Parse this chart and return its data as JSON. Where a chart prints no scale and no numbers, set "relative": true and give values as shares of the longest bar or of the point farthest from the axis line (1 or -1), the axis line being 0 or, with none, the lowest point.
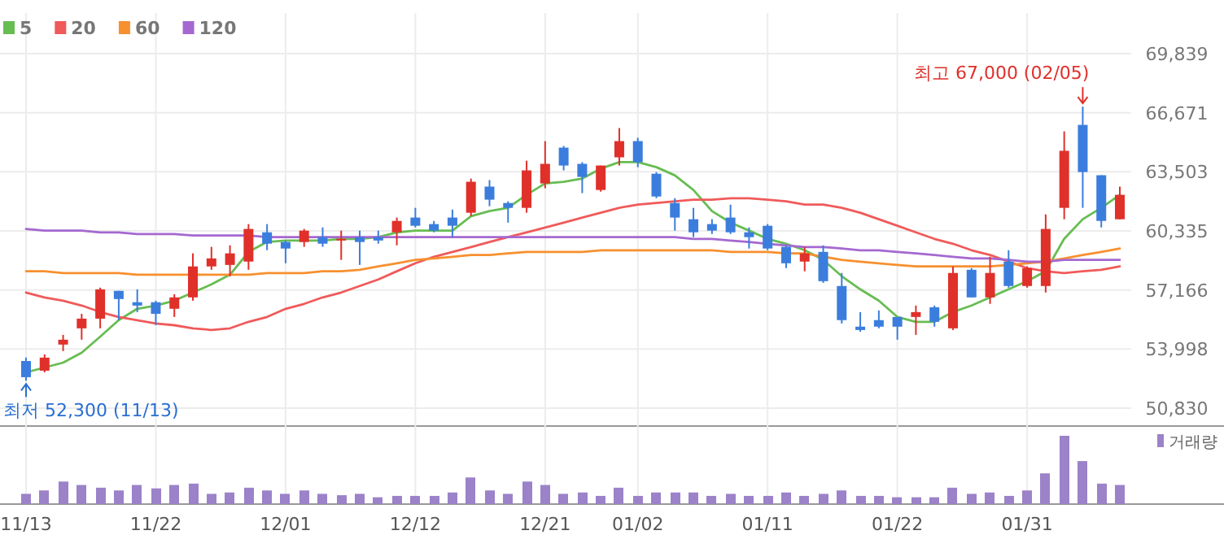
{
  "chart_data": [
    {
      "type": "candlestick",
      "categories": [
        null,
        null,
        null,
        null,
        null,
        null,
        null,
        null,
        null,
        null,
        null,
        null,
        null,
        null,
        null,
        null,
        null,
        null,
        null,
        null,
        null,
        null,
        null,
        null,
        null,
        null,
        null,
        null,
        null,
        null,
        null,
        null,
        null,
        null,
        null,
        null,
        null,
        null,
        null,
        null,
        null,
        null,
        null,
        null,
        null,
        null,
        null,
        null,
        null,
        null,
        null,
        null,
        null,
        null,
        null,
        null,
        null,
        null,
        null,
        null
      ],
      "ohlc": [
        [
          53360,
          53540,
          52300,
          52490
        ],
        [
          52840,
          53710,
          52750,
          53540
        ],
        [
          54240,
          54760,
          53890,
          54500
        ],
        [
          55110,
          55890,
          54500,
          55630
        ],
        [
          55630,
          57290,
          55110,
          57200
        ],
        [
          57120,
          57120,
          55550,
          56680
        ],
        [
          56510,
          57200,
          55980,
          56330
        ],
        [
          56510,
          56590,
          55280,
          55890
        ],
        [
          56160,
          56940,
          55720,
          56770
        ],
        [
          56770,
          59130,
          56590,
          58430
        ],
        [
          58430,
          59480,
          58250,
          58860
        ],
        [
          58510,
          59560,
          57900,
          59130
        ],
        [
          58690,
          60700,
          58250,
          60440
        ],
        [
          60260,
          60700,
          59300,
          59650
        ],
        [
          59740,
          59820,
          58600,
          59390
        ],
        [
          59740,
          60440,
          59480,
          60350
        ],
        [
          60000,
          60520,
          59480,
          59650
        ],
        [
          59820,
          60350,
          58780,
          59910
        ],
        [
          60000,
          60350,
          58510,
          59740
        ],
        [
          60000,
          60350,
          59650,
          59820
        ],
        [
          60260,
          61050,
          59560,
          60870
        ],
        [
          61050,
          61570,
          60520,
          60610
        ],
        [
          60700,
          60870,
          60260,
          60350
        ],
        [
          61050,
          61480,
          60000,
          60610
        ],
        [
          61310,
          63140,
          61130,
          62970
        ],
        [
          62710,
          63060,
          61660,
          62010
        ],
        [
          61830,
          61920,
          60780,
          61570
        ],
        [
          61570,
          64100,
          61310,
          63580
        ],
        [
          62880,
          65150,
          62620,
          63930
        ],
        [
          64800,
          64890,
          63580,
          63840
        ],
        [
          63930,
          64020,
          62360,
          63230
        ],
        [
          62530,
          63840,
          62440,
          63840
        ],
        [
          64280,
          65850,
          63840,
          65150
        ],
        [
          65150,
          65330,
          63750,
          64020
        ],
        [
          63400,
          63490,
          62090,
          62180
        ],
        [
          61830,
          62090,
          60350,
          61050
        ],
        [
          60960,
          61570,
          60000,
          60260
        ],
        [
          60700,
          60960,
          60170,
          60350
        ],
        [
          61050,
          61740,
          60170,
          60260
        ],
        [
          60260,
          60520,
          59390,
          60000
        ],
        [
          60610,
          60700,
          59300,
          59390
        ],
        [
          59480,
          59560,
          58340,
          58600
        ],
        [
          58690,
          59480,
          58170,
          59130
        ],
        [
          59210,
          59560,
          57550,
          57640
        ],
        [
          57380,
          58080,
          55370,
          55550
        ],
        [
          55200,
          55980,
          54930,
          55020
        ],
        [
          55550,
          56070,
          55110,
          55200
        ],
        [
          55720,
          55720,
          54500,
          55200
        ],
        [
          55720,
          56330,
          54760,
          55980
        ],
        [
          56240,
          56330,
          55200,
          55460
        ],
        [
          55110,
          58430,
          55020,
          58080
        ],
        [
          58250,
          58340,
          56770,
          56770
        ],
        [
          56770,
          58950,
          56420,
          58080
        ],
        [
          58690,
          59300,
          57290,
          57380
        ],
        [
          57380,
          58430,
          57290,
          58340
        ],
        [
          57380,
          61220,
          57030,
          60440
        ],
        [
          61570,
          65670,
          60960,
          64630
        ],
        [
          66020,
          67000,
          61570,
          63490
        ],
        [
          63320,
          63320,
          60520,
          60870
        ],
        [
          60960,
          62710,
          60960,
          62270
        ]
      ],
      "colors": [
        "#3b7ddd",
        "#e0302a",
        "#e0302a",
        "#e0302a",
        "#e0302a",
        "#3b7ddd",
        "#3b7ddd",
        "#3b7ddd",
        "#e0302a",
        "#e0302a",
        "#e0302a",
        "#e0302a",
        "#e0302a",
        "#3b7ddd",
        "#3b7ddd",
        "#e0302a",
        "#3b7ddd",
        "#e0302a",
        "#3b7ddd",
        "#3b7ddd",
        "#e0302a",
        "#3b7ddd",
        "#3b7ddd",
        "#3b7ddd",
        "#e0302a",
        "#3b7ddd",
        "#3b7ddd",
        "#e0302a",
        "#e0302a",
        "#3b7ddd",
        "#3b7ddd",
        "#e0302a",
        "#e0302a",
        "#3b7ddd",
        "#3b7ddd",
        "#3b7ddd",
        "#3b7ddd",
        "#3b7ddd",
        "#3b7ddd",
        "#3b7ddd",
        "#3b7ddd",
        "#3b7ddd",
        "#e0302a",
        "#3b7ddd",
        "#3b7ddd",
        "#3b7ddd",
        "#3b7ddd",
        "#3b7ddd",
        "#e0302a",
        "#3b7ddd",
        "#e0302a",
        "#3b7ddd",
        "#e0302a",
        "#3b7ddd",
        "#e0302a",
        "#e0302a",
        "#e0302a",
        "#3b7ddd",
        "#3b7ddd",
        "#e0302a"
      ],
      "series": [
        {
          "name": "5",
          "type": "line",
          "color": "#67bd52",
          "values": [
            52750,
            53010,
            53270,
            53800,
            54670,
            55550,
            56160,
            56330,
            56590,
            57030,
            57470,
            57990,
            59210,
            59740,
            59820,
            59820,
            59820,
            59910,
            59910,
            60000,
            60260,
            60350,
            60350,
            60350,
            61130,
            61400,
            61570,
            62270,
            62880,
            62970,
            63140,
            63670,
            64020,
            64020,
            63750,
            63320,
            62530,
            61400,
            60780,
            60350,
            59910,
            59650,
            59300,
            58780,
            57900,
            57200,
            56590,
            55720,
            55460,
            55460,
            55980,
            56330,
            56770,
            57200,
            57640,
            58170,
            59910,
            60960,
            61570,
            62270
          ]
        },
        {
          "name": "20",
          "type": "line",
          "color": "#f05a5a",
          "values": [
            57030,
            56770,
            56590,
            56330,
            55980,
            55720,
            55550,
            55370,
            55280,
            55110,
            55020,
            55110,
            55460,
            55720,
            56160,
            56420,
            56770,
            57030,
            57380,
            57730,
            58170,
            58600,
            58950,
            59210,
            59470,
            59740,
            60000,
            60260,
            60520,
            60780,
            61050,
            61310,
            61570,
            61750,
            61830,
            61920,
            62010,
            62010,
            62090,
            62090,
            62010,
            61920,
            61750,
            61750,
            61570,
            61310,
            60960,
            60610,
            60260,
            59910,
            59650,
            59300,
            59040,
            58690,
            58340,
            58170,
            58080,
            58170,
            58250,
            58430
          ]
        },
        {
          "name": "60",
          "type": "line",
          "color": "#f7902f",
          "values": [
            58170,
            58170,
            58080,
            58080,
            58080,
            58080,
            57990,
            57990,
            57990,
            57990,
            57990,
            57990,
            57990,
            58080,
            58080,
            58080,
            58170,
            58170,
            58250,
            58430,
            58600,
            58780,
            58860,
            58950,
            59040,
            59040,
            59130,
            59210,
            59210,
            59210,
            59210,
            59300,
            59300,
            59300,
            59300,
            59300,
            59300,
            59300,
            59210,
            59210,
            59210,
            59130,
            59130,
            58950,
            58780,
            58690,
            58600,
            58510,
            58430,
            58430,
            58430,
            58430,
            58430,
            58510,
            58600,
            58690,
            58860,
            59040,
            59210,
            59390
          ]
        },
        {
          "name": "120",
          "type": "line",
          "color": "#a568d0",
          "values": [
            60440,
            60350,
            60350,
            60350,
            60260,
            60260,
            60170,
            60170,
            60170,
            60090,
            60090,
            60090,
            60090,
            60000,
            60000,
            60000,
            60000,
            60000,
            60000,
            60000,
            60000,
            60000,
            60000,
            60000,
            60000,
            60000,
            60000,
            60000,
            60000,
            60000,
            60000,
            60000,
            60000,
            60000,
            60000,
            60000,
            59910,
            59910,
            59820,
            59740,
            59650,
            59560,
            59470,
            59470,
            59390,
            59300,
            59300,
            59210,
            59130,
            59040,
            58950,
            58860,
            58860,
            58780,
            58690,
            58690,
            58780,
            58780,
            58780,
            58780
          ]
        }
      ],
      "ylim": [
        50830,
        69839
      ],
      "yticks": [
        {
          "value": 50830,
          "label": "50,830"
        },
        {
          "value": 53998,
          "label": "53,998"
        },
        {
          "value": 57166,
          "label": "57,166"
        },
        {
          "value": 60335,
          "label": "60,335"
        },
        {
          "value": 63503,
          "label": "63,503"
        },
        {
          "value": 66671,
          "label": "66,671"
        },
        {
          "value": 69839,
          "label": "69,839"
        }
      ],
      "grid": "y",
      "legend": "top left",
      "tick_labels": "y",
      "annotations": [
        "최고 67,000 (02/05)",
        "최저 52,300 (11/13)"
      ]
    },
    {
      "type": "bar",
      "categories": [
        "11/13",
        null,
        null,
        null,
        null,
        null,
        null,
        "11/22",
        null,
        null,
        null,
        null,
        null,
        null,
        "12/01",
        null,
        null,
        null,
        null,
        null,
        null,
        "12/12",
        null,
        null,
        null,
        null,
        null,
        null,
        "12/21",
        null,
        null,
        null,
        null,
        "01/02",
        null,
        null,
        null,
        null,
        null,
        null,
        "01/11",
        null,
        null,
        null,
        null,
        null,
        null,
        "01/22",
        null,
        null,
        null,
        null,
        null,
        null,
        "01/31",
        null,
        null,
        null,
        null,
        null
      ],
      "relative": true,
      "grid": "x",
      "legend": "top right",
      "series": [
        {
          "name": "거래량",
          "color": "#9b82c9",
          "values": [
            0.15,
            0.2,
            0.33,
            0.28,
            0.24,
            0.2,
            0.28,
            0.23,
            0.28,
            0.3,
            0.15,
            0.17,
            0.24,
            0.2,
            0.15,
            0.2,
            0.15,
            0.13,
            0.15,
            0.1,
            0.12,
            0.12,
            0.12,
            0.17,
            0.39,
            0.2,
            0.15,
            0.33,
            0.28,
            0.15,
            0.17,
            0.12,
            0.24,
            0.12,
            0.17,
            0.17,
            0.17,
            0.12,
            0.15,
            0.12,
            0.12,
            0.17,
            0.12,
            0.15,
            0.2,
            0.12,
            0.12,
            0.1,
            0.1,
            0.1,
            0.24,
            0.15,
            0.17,
            0.12,
            0.2,
            0.45,
            1,
            0.63,
            0.3,
            0.28
          ]
        }
      ]
    }
  ]
}
